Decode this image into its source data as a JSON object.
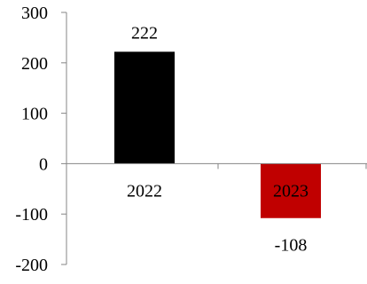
{
  "chart_data": {
    "type": "bar",
    "categories": [
      "2022",
      "2023"
    ],
    "values": [
      222,
      -108
    ],
    "data_labels": [
      "222",
      "-108"
    ],
    "bar_colors": [
      "#000000",
      "#c00000"
    ],
    "ylim": [
      -200,
      300
    ],
    "y_ticks": [
      300,
      200,
      100,
      0,
      -100,
      -200
    ],
    "y_tick_labels": [
      "300",
      "200",
      "100",
      "0",
      "-100",
      "-200"
    ],
    "title": "",
    "xlabel": "",
    "ylabel": "",
    "grid": false,
    "legend": "none",
    "axis_color": "#868686"
  }
}
